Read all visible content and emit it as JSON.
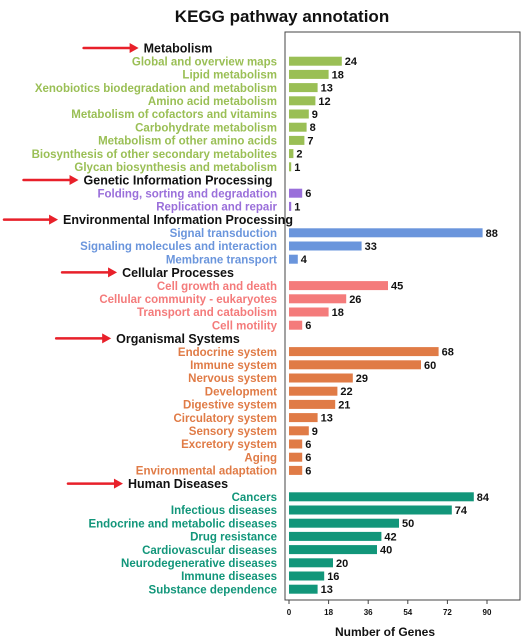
{
  "chart_data": {
    "type": "bar",
    "orientation": "horizontal",
    "title": "KEGG pathway annotation",
    "xlabel": "Number of Genes",
    "ylabel": "",
    "xlim": [
      0,
      100
    ],
    "xticks": [
      "0",
      "18",
      "36",
      "54",
      "72",
      "90"
    ],
    "grid": false,
    "legend": "none",
    "groups": [
      {
        "name": "Metabolism",
        "color": "#9ABF55",
        "categories": [
          "Global and overview maps",
          "Lipid metabolism",
          "Xenobiotics biodegradation and metabolism",
          "Amino acid metabolism",
          "Metabolism of cofactors and vitamins",
          "Carbohydrate metabolism",
          "Metabolism of other amino acids",
          "Biosynthesis of other secondary metabolites",
          "Glycan biosynthesis and metabolism"
        ],
        "values": [
          24,
          18,
          13,
          12,
          9,
          8,
          7,
          2,
          1
        ]
      },
      {
        "name": "Genetic Information Processing",
        "color": "#9A6FDA",
        "categories": [
          "Folding, sorting and degradation",
          "Replication and repair"
        ],
        "values": [
          6,
          1
        ]
      },
      {
        "name": "Environmental Information Processing",
        "color": "#6A95DC",
        "categories": [
          "Signal transduction",
          "Signaling molecules and interaction",
          "Membrane transport"
        ],
        "values": [
          88,
          33,
          4
        ]
      },
      {
        "name": "Cellular Processes",
        "color": "#F47B7B",
        "categories": [
          "Cell growth and death",
          "Cellular community - eukaryotes",
          "Transport and catabolism",
          "Cell motility"
        ],
        "values": [
          45,
          26,
          18,
          6
        ]
      },
      {
        "name": "Organismal Systems",
        "color": "#E07B46",
        "categories": [
          "Endocrine system",
          "Immune system",
          "Nervous system",
          "Development",
          "Digestive system",
          "Circulatory system",
          "Sensory system",
          "Excretory system",
          "Aging",
          "Environmental adaptation"
        ],
        "values": [
          68,
          60,
          29,
          22,
          21,
          13,
          9,
          6,
          6,
          6
        ]
      },
      {
        "name": "Human Diseases",
        "color": "#12967A",
        "categories": [
          "Cancers",
          "Infectious diseases",
          "Endocrine and metabolic diseases",
          "Drug resistance",
          "Cardiovascular diseases",
          "Neurodegenerative diseases",
          "Immune diseases",
          "Substance dependence"
        ],
        "values": [
          84,
          74,
          50,
          42,
          40,
          20,
          16,
          13
        ]
      }
    ],
    "annotation_color": "#E8202A"
  }
}
